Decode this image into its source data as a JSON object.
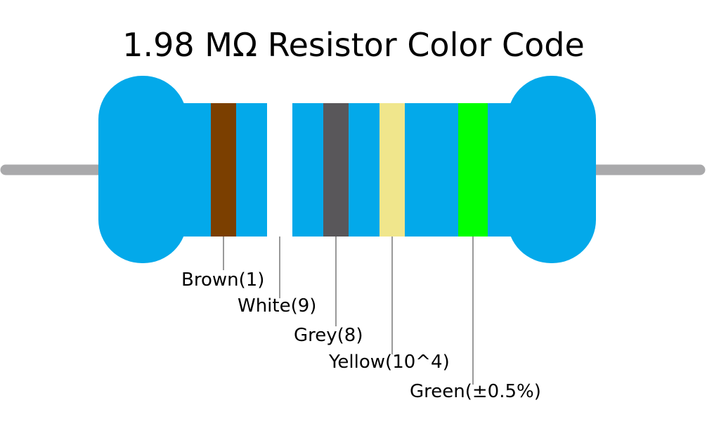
{
  "title": "1.98 MΩ Resistor Color Code",
  "bands": [
    {
      "label": "Brown(1)",
      "color": "#7b3f00"
    },
    {
      "label": "White(9)",
      "color": "#ffffff"
    },
    {
      "label": "Grey(8)",
      "color": "#59575a"
    },
    {
      "label": "Yellow(10^4)",
      "color": "#f0e68c"
    },
    {
      "label": "Green(±0.5%)",
      "color": "#00ff00"
    }
  ]
}
